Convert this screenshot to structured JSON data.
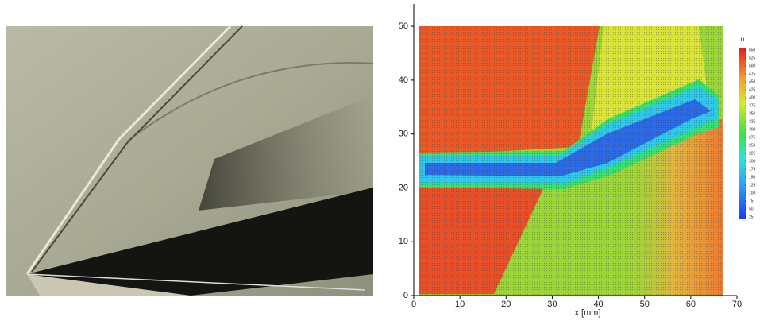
{
  "chart_data": {
    "type": "contour",
    "xlabel": "x [mm]",
    "xlim": [
      0,
      70
    ],
    "xticks": [
      0,
      10,
      20,
      30,
      40,
      50,
      60,
      70
    ],
    "ylim": [
      0,
      54
    ],
    "yticks": [
      0,
      10,
      20,
      30,
      40,
      50
    ],
    "colorbar_title": "u",
    "clim": [
      25,
      550
    ],
    "colorbar_ticks": [
      25,
      50,
      75,
      100,
      125,
      150,
      175,
      200,
      225,
      250,
      275,
      300,
      325,
      350,
      375,
      400,
      425,
      450,
      475,
      500,
      525,
      550
    ]
  }
}
